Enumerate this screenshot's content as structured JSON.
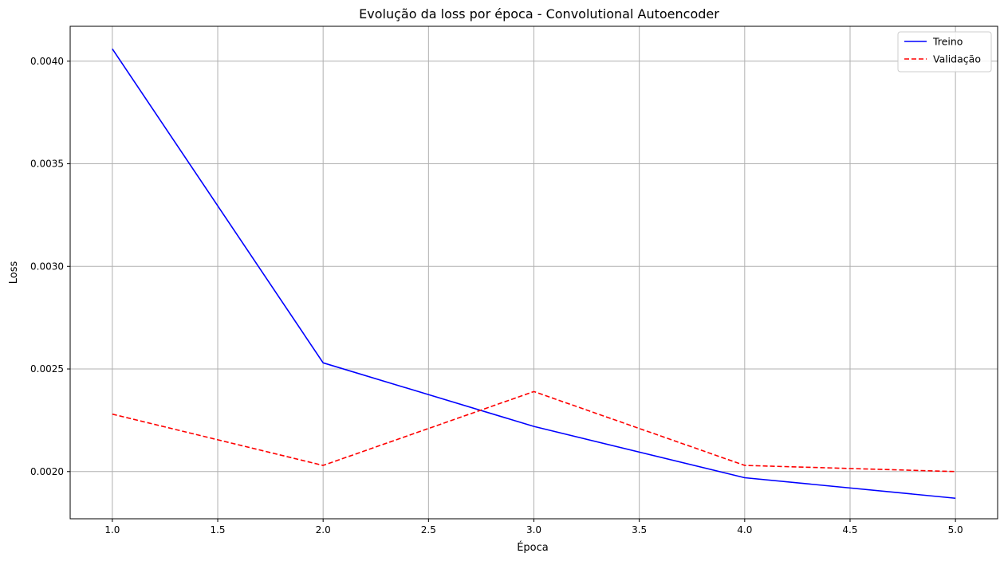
{
  "chart_data": {
    "type": "line",
    "title": "Evolução da loss por época - Convolutional Autoencoder",
    "xlabel": "Época",
    "ylabel": "Loss",
    "x": [
      1,
      2,
      3,
      4,
      5
    ],
    "xlim": [
      0.8,
      5.2
    ],
    "ylim": [
      0.00177,
      0.00417
    ],
    "xticks": [
      1.0,
      1.5,
      2.0,
      2.5,
      3.0,
      3.5,
      4.0,
      4.5,
      5.0
    ],
    "xtick_labels": [
      "1.0",
      "1.5",
      "2.0",
      "2.5",
      "3.0",
      "3.5",
      "4.0",
      "4.5",
      "5.0"
    ],
    "yticks": [
      0.002,
      0.0025,
      0.003,
      0.0035,
      0.004
    ],
    "ytick_labels": [
      "0.0020",
      "0.0025",
      "0.0030",
      "0.0035",
      "0.0040"
    ],
    "grid": true,
    "legend_position": "top-right",
    "series": [
      {
        "name": "Treino",
        "values": [
          0.00406,
          0.00253,
          0.00222,
          0.00197,
          0.00187
        ],
        "color": "#0000ff",
        "style": "solid"
      },
      {
        "name": "Validação",
        "values": [
          0.00228,
          0.00203,
          0.00239,
          0.00203,
          0.002
        ],
        "color": "#ff0000",
        "style": "dashed"
      }
    ]
  }
}
